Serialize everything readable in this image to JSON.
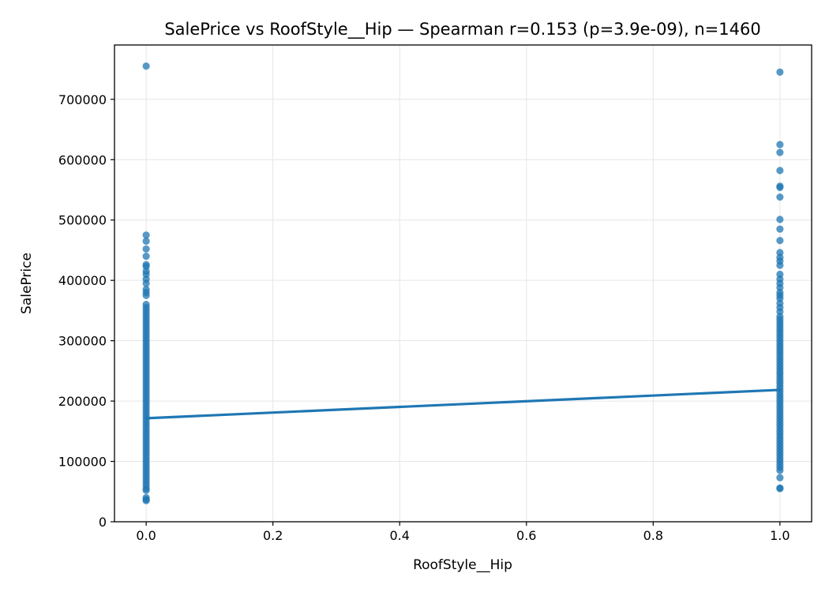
{
  "chart_data": {
    "type": "scatter",
    "title": "SalePrice vs RoofStyle__Hip — Spearman r=0.153 (p=3.9e-09), n=1460",
    "xlabel": "RoofStyle__Hip",
    "ylabel": "SalePrice",
    "xlim": [
      -0.05,
      1.05
    ],
    "ylim": [
      0,
      790000
    ],
    "x_ticks": [
      0.0,
      0.2,
      0.4,
      0.6,
      0.8,
      1.0
    ],
    "x_tick_labels": [
      "0.0",
      "0.2",
      "0.4",
      "0.6",
      "0.8",
      "1.0"
    ],
    "y_ticks": [
      0,
      100000,
      200000,
      300000,
      400000,
      500000,
      600000,
      700000
    ],
    "y_tick_labels": [
      "0",
      "100000",
      "200000",
      "300000",
      "400000",
      "500000",
      "600000",
      "700000"
    ],
    "grid": true,
    "point_color": "#1f77b4",
    "line_color": "#1f77b4",
    "series": [
      {
        "x": 0,
        "values": [
          755000,
          475000,
          465000,
          452000,
          440000,
          426000,
          423000,
          415000,
          410000,
          402000,
          395000,
          385000,
          380000,
          375000,
          360000,
          355000,
          350000,
          345000,
          340000,
          335000,
          330000,
          325000,
          320000,
          315000,
          310000,
          305000,
          300000,
          295000,
          290000,
          285000,
          280000,
          275000,
          270000,
          265000,
          260000,
          255000,
          250000,
          245000,
          240000,
          235000,
          230000,
          225000,
          220000,
          215000,
          210000,
          205000,
          200000,
          195000,
          190000,
          185000,
          180000,
          175000,
          170000,
          165000,
          160000,
          155000,
          150000,
          145000,
          140000,
          135000,
          130000,
          125000,
          120000,
          115000,
          110000,
          105000,
          100000,
          95000,
          90000,
          85000,
          80000,
          75000,
          70000,
          65000,
          60000,
          55000,
          52000,
          40000,
          37000,
          35000
        ]
      },
      {
        "x": 1,
        "values": [
          745000,
          625000,
          612000,
          582000,
          556000,
          554000,
          538000,
          501000,
          485000,
          466000,
          446000,
          438000,
          432000,
          425000,
          410000,
          402000,
          395000,
          388000,
          380000,
          375000,
          370000,
          362000,
          355000,
          348000,
          340000,
          335000,
          330000,
          325000,
          320000,
          315000,
          310000,
          305000,
          300000,
          295000,
          290000,
          285000,
          280000,
          275000,
          270000,
          265000,
          260000,
          255000,
          250000,
          245000,
          240000,
          235000,
          230000,
          225000,
          220000,
          215000,
          210000,
          205000,
          200000,
          195000,
          190000,
          185000,
          180000,
          175000,
          170000,
          165000,
          160000,
          155000,
          150000,
          145000,
          140000,
          135000,
          130000,
          125000,
          120000,
          115000,
          110000,
          105000,
          100000,
          95000,
          90000,
          85000,
          73000,
          56000,
          55000
        ]
      }
    ],
    "trend_line": {
      "x": [
        0,
        1
      ],
      "y": [
        171500,
        218500
      ]
    }
  }
}
